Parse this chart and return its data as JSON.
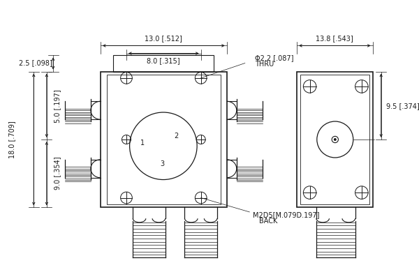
{
  "bg_color": "#ffffff",
  "line_color": "#1a1a1a",
  "dim_color": "#1a1a1a",
  "font_size": 7,
  "dims": {
    "top_13": "13.0 [.512]",
    "top_8": "8.0 [.315]",
    "left_25": "2.5 [.098]",
    "left_18": "18.0 [.709]",
    "left_5": "5.0 [.197]",
    "left_9": "9.0 [.354]",
    "hole_label": "Φ2.2 [.087]",
    "hole_sub": "THRU",
    "screw_label": "M2D5[M.079D.197]",
    "screw_sub": "BACK",
    "right_138": "13.8 [.543]",
    "right_95": "9.5 [.374]"
  }
}
